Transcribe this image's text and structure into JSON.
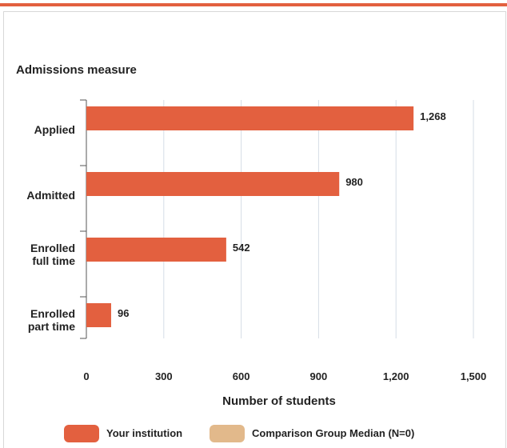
{
  "chart_data": {
    "type": "bar",
    "orientation": "horizontal",
    "title": "Admissions measure",
    "xlabel": "Number of students",
    "categories": [
      "Applied",
      "Admitted",
      "Enrolled full time",
      "Enrolled part time"
    ],
    "series": [
      {
        "name": "Your institution",
        "color": "#e3603f",
        "values": [
          1268,
          980,
          542,
          96
        ],
        "value_labels": [
          "1,268",
          "980",
          "542",
          "96"
        ]
      },
      {
        "name": "Comparison Group Median (N=0)",
        "color": "#e2b98b",
        "values": [
          null,
          null,
          null,
          null
        ]
      }
    ],
    "xlim": [
      0,
      1500
    ],
    "xticks": [
      0,
      300,
      600,
      900,
      {
        "value": 1200,
        "label": "1,200"
      },
      {
        "value": 1500,
        "label": "1,500"
      }
    ],
    "grid": true
  }
}
